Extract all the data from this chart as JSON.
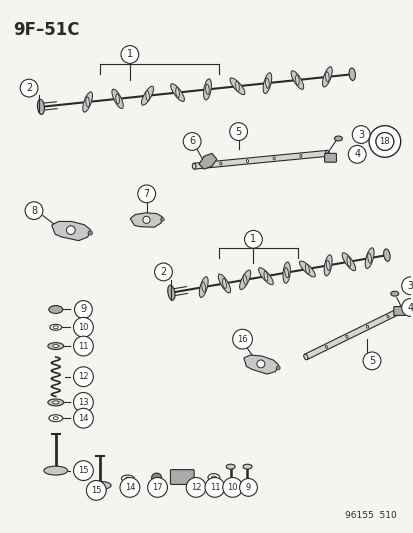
{
  "title": "9F–51C",
  "bg": "#f5f5f0",
  "lc": "#2a2a2a",
  "watermark": "96155  510",
  "fig_w": 4.14,
  "fig_h": 5.33,
  "dpi": 100
}
